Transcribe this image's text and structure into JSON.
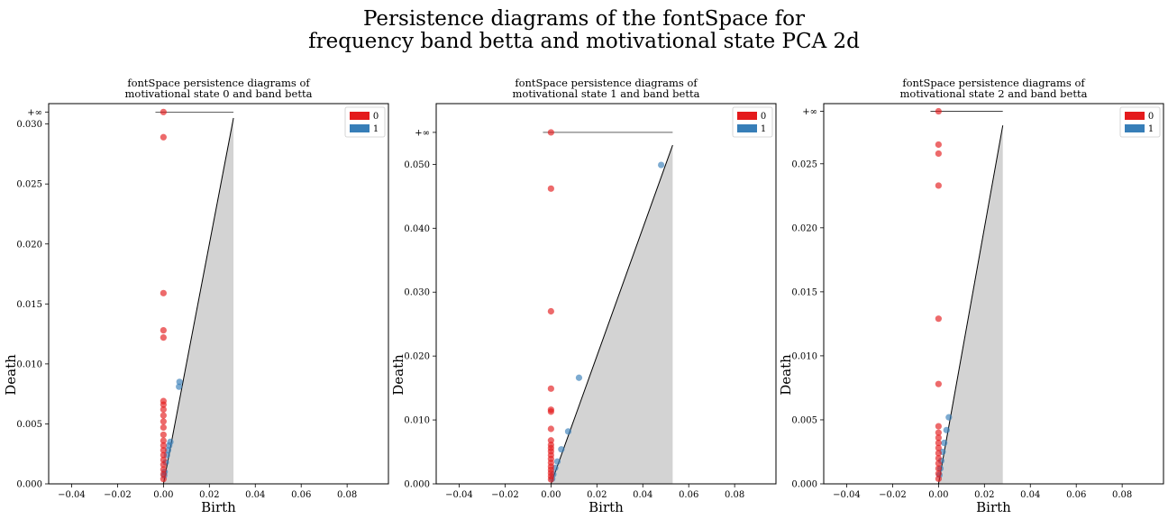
{
  "figure": {
    "title_line1": "Persistence diagrams of the fontSpace for",
    "title_line2": "frequency band betta and motivational state PCA 2d"
  },
  "colors": {
    "h0": "#e41a1c",
    "h1": "#377eb8",
    "diagonal_fill": "#d3d3d3"
  },
  "chart_data": [
    {
      "type": "scatter",
      "title_line1": "fontSpace persistence diagrams of",
      "title_line2": "motivational state 0 and band betta",
      "xlabel": "Birth",
      "ylabel": "Death",
      "xlim": [
        -0.05,
        0.098
      ],
      "ylim": [
        0,
        0.0317
      ],
      "xticks": [
        "-0.04",
        "-0.02",
        "0.00",
        "0.02",
        "0.04",
        "0.06",
        "0.08"
      ],
      "xtick_values": [
        -0.04,
        -0.02,
        0.0,
        0.02,
        0.04,
        0.06,
        0.08
      ],
      "yticks": [
        "0.000",
        "0.005",
        "0.010",
        "0.015",
        "0.020",
        "0.025",
        "0.030"
      ],
      "ytick_values": [
        0,
        0.005,
        0.01,
        0.015,
        0.02,
        0.025,
        0.03
      ],
      "inf_label": "+∞",
      "inf_value": 0.031,
      "diagonal_max": 0.0305,
      "legend": [
        "0",
        "1"
      ],
      "series": [
        {
          "name": "0",
          "points": [
            [
              0,
              0.031
            ],
            [
              0,
              0.0289
            ],
            [
              0,
              0.0159
            ],
            [
              0,
              0.0128
            ],
            [
              0,
              0.0122
            ],
            [
              0,
              0.0069
            ],
            [
              0,
              0.0066
            ],
            [
              0,
              0.0062
            ],
            [
              0,
              0.0057
            ],
            [
              0,
              0.0052
            ],
            [
              0,
              0.0047
            ],
            [
              0,
              0.0041
            ],
            [
              0,
              0.0036
            ],
            [
              0,
              0.0032
            ],
            [
              0,
              0.0028
            ],
            [
              0,
              0.0024
            ],
            [
              0,
              0.002
            ],
            [
              0,
              0.0016
            ],
            [
              0,
              0.0012
            ],
            [
              0,
              0.0008
            ],
            [
              0,
              0.0004
            ]
          ]
        },
        {
          "name": "1",
          "points": [
            [
              0.007,
              0.0085
            ],
            [
              0.0068,
              0.0081
            ],
            [
              0.003,
              0.0035
            ],
            [
              0.0025,
              0.0032
            ],
            [
              0.002,
              0.0028
            ],
            [
              0.0015,
              0.0024
            ],
            [
              0.001,
              0.0018
            ],
            [
              0.0005,
              0.001
            ],
            [
              0.0003,
              0.0007
            ]
          ]
        }
      ]
    },
    {
      "type": "scatter",
      "title_line1": "fontSpace persistence diagrams of",
      "title_line2": "motivational state 1 and band betta",
      "xlabel": "Birth",
      "ylabel": "Death",
      "xlim": [
        -0.05,
        0.098
      ],
      "ylim": [
        0,
        0.0595
      ],
      "xticks": [
        "-0.04",
        "-0.02",
        "0.00",
        "0.02",
        "0.04",
        "0.06",
        "0.08"
      ],
      "xtick_values": [
        -0.04,
        -0.02,
        0.0,
        0.02,
        0.04,
        0.06,
        0.08
      ],
      "yticks": [
        "0.000",
        "0.010",
        "0.020",
        "0.030",
        "0.040",
        "0.050"
      ],
      "ytick_values": [
        0,
        0.01,
        0.02,
        0.03,
        0.04,
        0.05
      ],
      "inf_label": "+∞",
      "inf_value": 0.055,
      "diagonal_max": 0.053,
      "legend": [
        "0",
        "1"
      ],
      "series": [
        {
          "name": "0",
          "points": [
            [
              0,
              0.055
            ],
            [
              0,
              0.0462
            ],
            [
              0,
              0.027
            ],
            [
              0,
              0.0149
            ],
            [
              0,
              0.0116
            ],
            [
              0,
              0.0113
            ],
            [
              0,
              0.0086
            ],
            [
              0,
              0.0068
            ],
            [
              0,
              0.0061
            ],
            [
              0,
              0.0056
            ],
            [
              0,
              0.0051
            ],
            [
              0,
              0.0045
            ],
            [
              0,
              0.0039
            ],
            [
              0,
              0.0033
            ],
            [
              0,
              0.0027
            ],
            [
              0,
              0.0022
            ],
            [
              0,
              0.0017
            ],
            [
              0,
              0.0012
            ],
            [
              0,
              0.0007
            ]
          ]
        },
        {
          "name": "1",
          "points": [
            [
              0.048,
              0.0499
            ],
            [
              0.0122,
              0.0166
            ],
            [
              0.0075,
              0.0082
            ],
            [
              0.0045,
              0.0054
            ],
            [
              0.0028,
              0.0035
            ],
            [
              0.0018,
              0.0025
            ],
            [
              0.001,
              0.0015
            ],
            [
              0.0005,
              0.0008
            ]
          ]
        }
      ]
    },
    {
      "type": "scatter",
      "title_line1": "fontSpace persistence diagrams of",
      "title_line2": "motivational state 2 and band betta",
      "xlabel": "Birth",
      "ylabel": "Death",
      "xlim": [
        -0.05,
        0.098
      ],
      "ylim": [
        0,
        0.0297
      ],
      "xticks": [
        "-0.04",
        "-0.02",
        "0.00",
        "0.02",
        "0.04",
        "0.06",
        "0.08"
      ],
      "xtick_values": [
        -0.04,
        -0.02,
        0.0,
        0.02,
        0.04,
        0.06,
        0.08
      ],
      "yticks": [
        "0.000",
        "0.005",
        "0.010",
        "0.015",
        "0.020",
        "0.025"
      ],
      "ytick_values": [
        0,
        0.005,
        0.01,
        0.015,
        0.02,
        0.025
      ],
      "inf_label": "+∞",
      "inf_value": 0.0291,
      "diagonal_max": 0.028,
      "legend": [
        "0",
        "1"
      ],
      "series": [
        {
          "name": "0",
          "points": [
            [
              0,
              0.0291
            ],
            [
              0,
              0.0265
            ],
            [
              0,
              0.0258
            ],
            [
              0,
              0.0233
            ],
            [
              0,
              0.0129
            ],
            [
              0,
              0.0078
            ],
            [
              0,
              0.0045
            ],
            [
              0,
              0.004
            ],
            [
              0,
              0.0036
            ],
            [
              0,
              0.0032
            ],
            [
              0,
              0.0028
            ],
            [
              0,
              0.0024
            ],
            [
              0,
              0.002
            ],
            [
              0,
              0.0016
            ],
            [
              0,
              0.0012
            ],
            [
              0,
              0.0008
            ],
            [
              0,
              0.0004
            ]
          ]
        },
        {
          "name": "1",
          "points": [
            [
              0.0045,
              0.0052
            ],
            [
              0.0035,
              0.0042
            ],
            [
              0.0025,
              0.0032
            ],
            [
              0.0018,
              0.0025
            ],
            [
              0.0012,
              0.0018
            ],
            [
              0.0008,
              0.0012
            ],
            [
              0.0004,
              0.0007
            ]
          ]
        }
      ]
    }
  ]
}
